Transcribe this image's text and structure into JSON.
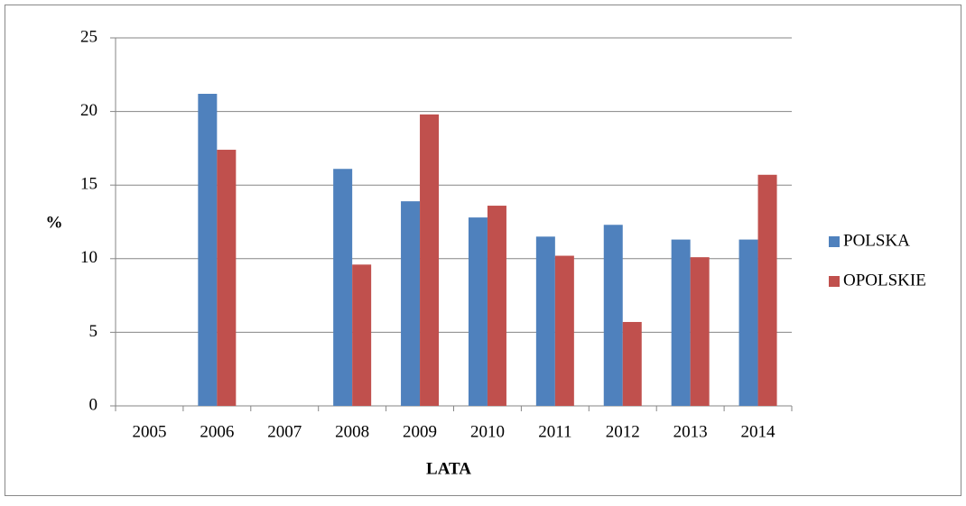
{
  "chart_data": {
    "type": "bar",
    "categories": [
      "2005",
      "2006",
      "2007",
      "2008",
      "2009",
      "2010",
      "2011",
      "2012",
      "2013",
      "2014"
    ],
    "series": [
      {
        "name": "POLSKA",
        "color": "#4f81bd",
        "values": [
          null,
          21.2,
          null,
          16.1,
          13.9,
          12.8,
          11.5,
          12.3,
          11.3,
          11.3
        ]
      },
      {
        "name": "OPOLSKIE",
        "color": "#c0504d",
        "values": [
          null,
          17.4,
          null,
          9.6,
          19.8,
          13.6,
          10.2,
          5.7,
          10.1,
          15.7
        ]
      }
    ],
    "ylabel": "%",
    "xlabel": "LATA",
    "ylim": [
      0,
      25
    ],
    "yticks": [
      0,
      5,
      10,
      15,
      20,
      25
    ],
    "grid": true,
    "legend": "right"
  }
}
